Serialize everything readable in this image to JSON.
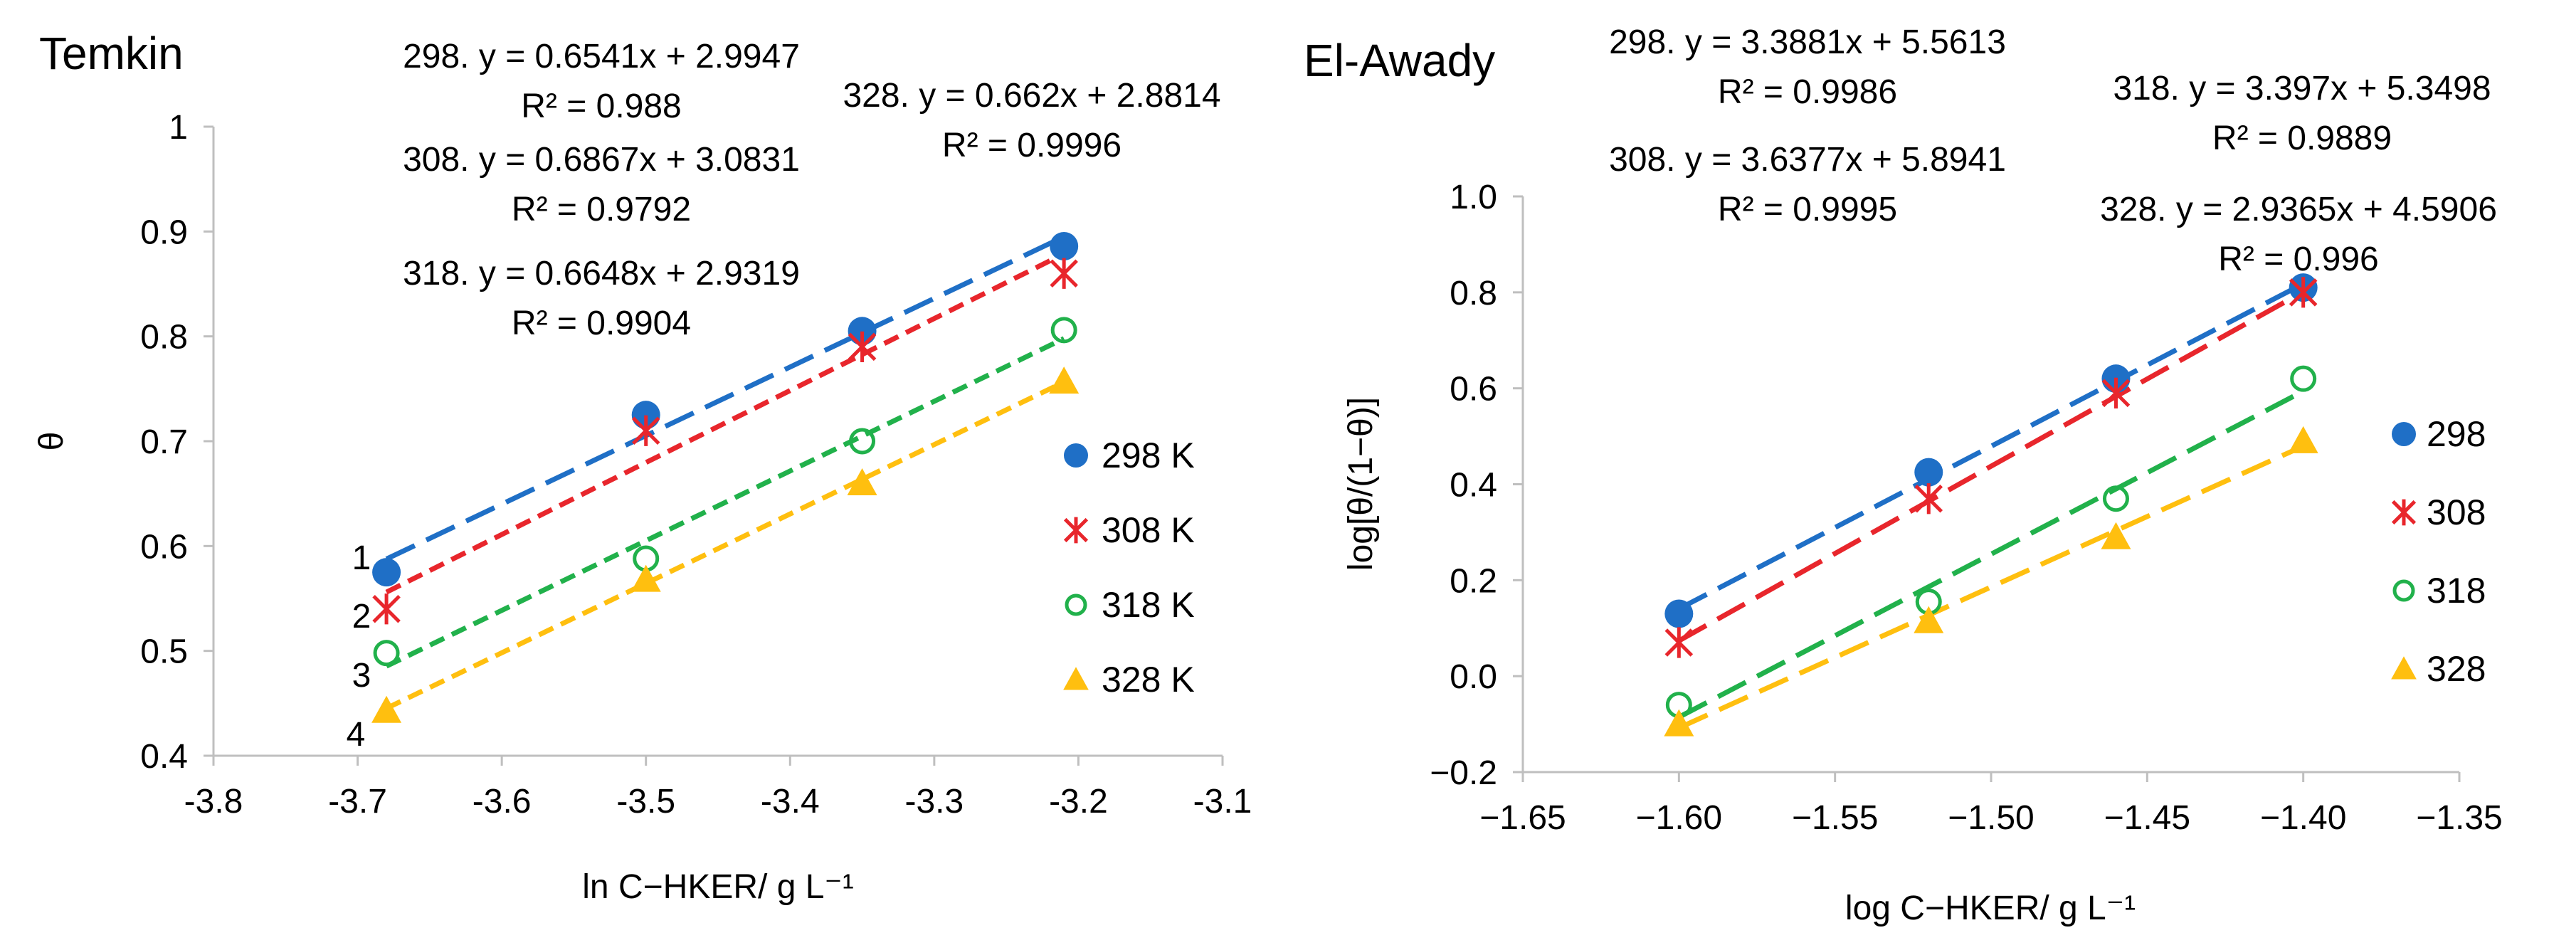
{
  "chart_data": [
    {
      "type": "scatter",
      "title": "Temkin",
      "xlabel": "ln C−HKER/ g L⁻¹",
      "ylabel": "θ",
      "xlim": [
        -3.8,
        -3.1
      ],
      "ylim": [
        0.4,
        1.0
      ],
      "xticks": [
        "-3.8",
        "-3.7",
        "-3.6",
        "-3.5",
        "-3.4",
        "-3.3",
        "-3.2",
        "-3.1"
      ],
      "yticks": [
        "0.4",
        "0.5",
        "0.6",
        "0.7",
        "0.8",
        "0.9",
        "1"
      ],
      "grid": false,
      "legend_position": "right",
      "line_labels": [
        "1",
        "2",
        "3",
        "4"
      ],
      "series": [
        {
          "name": "298 K",
          "marker": "circle-filled",
          "color": "#1f6fc6",
          "x": [
            -3.68,
            -3.5,
            -3.35,
            -3.21
          ],
          "y": [
            0.575,
            0.725,
            0.805,
            0.886
          ],
          "fit": {
            "slope": 0.6541,
            "intercept": 2.9947
          },
          "equation": "298. y = 0.6541x + 2.9947",
          "r2": "R² = 0.988"
        },
        {
          "name": "308 K",
          "marker": "star",
          "color": "#e8262c",
          "x": [
            -3.68,
            -3.5,
            -3.35,
            -3.21
          ],
          "y": [
            0.54,
            0.71,
            0.79,
            0.86
          ],
          "fit": {
            "slope": 0.6867,
            "intercept": 3.0831
          },
          "equation": "308. y = 0.6867x + 3.0831",
          "r2": "R² = 0.9792"
        },
        {
          "name": "318 K",
          "marker": "circle-open",
          "color": "#21b14b",
          "x": [
            -3.68,
            -3.5,
            -3.35,
            -3.21
          ],
          "y": [
            0.498,
            0.588,
            0.7,
            0.806
          ],
          "fit": {
            "slope": 0.6648,
            "intercept": 2.9319
          },
          "equation": "318. y = 0.6648x + 2.9319",
          "r2": "R² = 0.9904"
        },
        {
          "name": "328 K",
          "marker": "triangle",
          "color": "#ffbf0f",
          "x": [
            -3.68,
            -3.5,
            -3.35,
            -3.21
          ],
          "y": [
            0.443,
            0.568,
            0.66,
            0.757
          ],
          "fit": {
            "slope": 0.662,
            "intercept": 2.8814
          },
          "equation": "328. y = 0.662x + 2.8814",
          "r2": "R² = 0.9996"
        }
      ]
    },
    {
      "type": "scatter",
      "title": "El-Awady",
      "xlabel": "log C−HKER/ g L⁻¹",
      "ylabel": "log[θ/(1−θ)]",
      "xlim": [
        -1.65,
        -1.35
      ],
      "ylim": [
        -0.2,
        1.0
      ],
      "xticks": [
        "−1.65",
        "−1.60",
        "−1.55",
        "−1.50",
        "−1.45",
        "−1.40",
        "−1.35"
      ],
      "yticks": [
        "−0.2",
        "0.0",
        "0.2",
        "0.4",
        "0.6",
        "0.8",
        "1.0"
      ],
      "grid": false,
      "legend_position": "right",
      "series": [
        {
          "name": "298",
          "marker": "circle-filled",
          "color": "#1f6fc6",
          "x": [
            -1.6,
            -1.52,
            -1.46,
            -1.4
          ],
          "y": [
            0.13,
            0.425,
            0.62,
            0.81
          ],
          "fit": {
            "slope": 3.3881,
            "intercept": 5.5613
          },
          "equation": "298. y = 3.3881x + 5.5613",
          "r2": "R² = 0.9986"
        },
        {
          "name": "308",
          "marker": "star",
          "color": "#e8262c",
          "x": [
            -1.6,
            -1.52,
            -1.46,
            -1.4
          ],
          "y": [
            0.07,
            0.37,
            0.59,
            0.8
          ],
          "fit": {
            "slope": 3.6377,
            "intercept": 5.8941
          },
          "equation": "308. y = 3.6377x + 5.8941",
          "r2": "R² = 0.9995"
        },
        {
          "name": "318",
          "marker": "circle-open",
          "color": "#21b14b",
          "x": [
            -1.6,
            -1.52,
            -1.46,
            -1.4
          ],
          "y": [
            -0.06,
            0.155,
            0.37,
            0.62
          ],
          "fit": {
            "slope": 3.397,
            "intercept": 5.3498
          },
          "equation": "318. y = 3.397x + 5.3498",
          "r2": "R² = 0.9889"
        },
        {
          "name": "328",
          "marker": "triangle",
          "color": "#ffbf0f",
          "x": [
            -1.6,
            -1.52,
            -1.46,
            -1.4
          ],
          "y": [
            -0.1,
            0.115,
            0.29,
            0.49
          ],
          "fit": {
            "slope": 2.9365,
            "intercept": 4.5906
          },
          "equation": "328. y = 2.9365x + 4.5906",
          "r2": "R² = 0.996"
        }
      ]
    }
  ]
}
